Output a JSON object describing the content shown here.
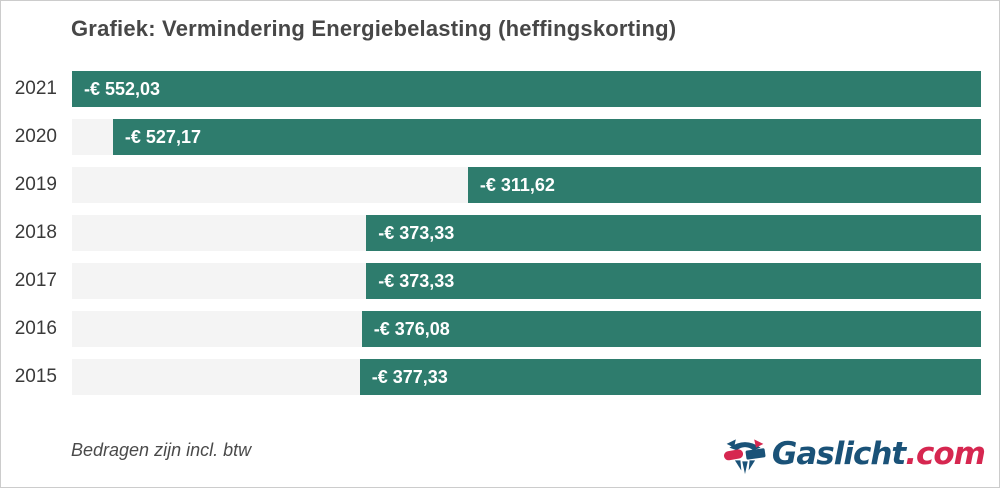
{
  "title": "Grafiek: Vermindering Energiebelasting (heffingskorting)",
  "footnote": "Bedragen zijn incl. btw",
  "logo": {
    "name": "Gaslicht.com",
    "text_main": "Gaslicht",
    "text_suffix": ".com",
    "main_color": "#1a5278",
    "suffix_color": "#d62750"
  },
  "colors": {
    "bar": "#2e7c6d",
    "track": "#f4f4f4",
    "title_text": "#474747",
    "year_text": "#3a3a3a",
    "value_text": "#ffffff",
    "border": "#cccccc"
  },
  "chart_data": {
    "type": "bar",
    "orientation": "horizontal",
    "bar_anchor": "right",
    "title": "Grafiek: Vermindering Energiebelasting (heffingskorting)",
    "xlabel": "",
    "ylabel": "",
    "unit": "EUR",
    "grid": false,
    "legend": false,
    "axis_ticks_visible": false,
    "categories": [
      "2021",
      "2020",
      "2019",
      "2018",
      "2017",
      "2016",
      "2015"
    ],
    "values": [
      -552.03,
      -527.17,
      -311.62,
      -373.33,
      -373.33,
      -376.08,
      -377.33
    ],
    "value_labels": [
      "-€ 552,03",
      "-€ 527,17",
      "-€ 311,62",
      "-€ 373,33",
      "-€ 373,33",
      "-€ 376,08",
      "-€ 377,33"
    ],
    "scale_max_abs": 552.03,
    "note": "Bar length proportional to absolute value; bars anchored to right edge"
  }
}
